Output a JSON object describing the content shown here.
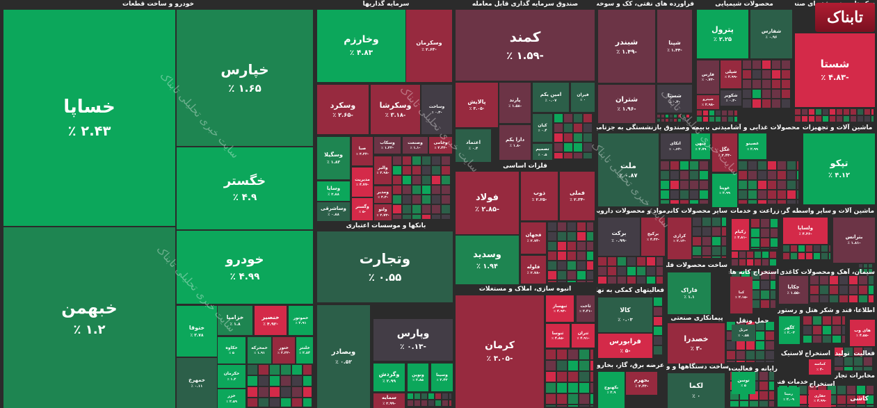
{
  "colors": {
    "bright_green": "#0ca75b",
    "green": "#1e8551",
    "dark_green": "#2c5f49",
    "gray": "#433d46",
    "maroon": "#6c3446",
    "red": "#972a3f",
    "bright_red": "#d42a49",
    "background": "#2b2b2b"
  },
  "logo": "تابناک",
  "watermark": "سایت خبری تحلیلی تابناک",
  "sectors": [
    "خودرو و ساخت قطعات",
    "سرمایه گذاریها",
    "صندوق سرمایه گذاری قابل معامله",
    "فراورده های نفتی، کک و سوخت هسته ای",
    "محصولات شیمیایی",
    "سکوهای چند رشته ای صنعتی",
    "بانکها و موسسات اعتباری",
    "فلزات اساسی",
    "انبوه سازی، املاک و مستغلات",
    "بیمه وصندوق بازنشستگی به جزتامین اجتماعی",
    "محصولات غذایی و آشامیدنی به جز قند",
    "ماشین آلات و تجهیزات",
    "مواد و محصولات دارویی",
    "سایر محصولات کانی",
    "زراعت و خدمات",
    "سایر واسطه گریهای",
    "ماشین آلات و",
    "ساخت محصولات فلزی",
    "استخراج کانه های",
    "محصولات کاغذی",
    "سیمان، آهک و گچ",
    "فعالیتهای کمکی به نهادهای",
    "پیمانکاری صنعتی",
    "حمل ونقل",
    "هتل و رستوران",
    "قند و شکر",
    "اطلاعات و",
    "لاستیک و",
    "استخراج",
    "تولید",
    "فعالیت",
    "عرضه برق، گاز، بخاروآب گرم",
    "ساخت دستگاهها و وسایل",
    "رایانه و فعالیت‌های",
    "خدمات فنی",
    "استخراج",
    "مخابرات تجارة منسوج",
    "کاشی"
  ],
  "tiles": [
    {
      "name": "خساپا",
      "pct": "۲.۴۳ ٪",
      "color": "bright_green"
    },
    {
      "name": "خبهمن",
      "pct": "۱.۲ ٪",
      "color": "green"
    },
    {
      "name": "خپارس",
      "pct": "۱.۶۵ ٪",
      "color": "green"
    },
    {
      "name": "خگستر",
      "pct": "۴.۹ ٪",
      "color": "bright_green"
    },
    {
      "name": "خودرو",
      "pct": "۴.۹۹ ٪",
      "color": "bright_green"
    },
    {
      "name": "خزامیا",
      "pct": "۱.۸ ٪",
      "color": "green"
    },
    {
      "name": "خنصیر",
      "pct": "-۴.۹۲ ٪",
      "color": "bright_red"
    },
    {
      "name": "خموتور",
      "pct": "۲.۹۱ ٪",
      "color": "bright_green"
    },
    {
      "name": "ختوقا",
      "pct": "۳.۷۸ ٪",
      "color": "bright_green"
    },
    {
      "name": "خمهرخ",
      "pct": "۰.۱۱ ٪",
      "color": "dark_green"
    },
    {
      "name": "خکاوه",
      "pct": "۵ ٪",
      "color": "bright_green"
    },
    {
      "name": "خمحرکه",
      "pct": "۱.۹۱ ٪",
      "color": "green"
    },
    {
      "name": "ختور",
      "pct": "-۲.۳۲ ٪",
      "color": "red"
    },
    {
      "name": "خلنتر",
      "pct": "۲.۸۴ ٪",
      "color": "bright_green"
    },
    {
      "name": "خکرمان",
      "pct": "۱.۲ ٪",
      "color": "bright_green"
    },
    {
      "name": "خزر",
      "pct": "۲.۵۹ ٪",
      "color": "bright_green"
    },
    {
      "name": "وخارزم",
      "pct": "۴.۸۳ ٪",
      "color": "bright_green"
    },
    {
      "name": "وسکرمان",
      "pct": "-۲.۶۳ ٪",
      "color": "red"
    },
    {
      "name": "وسکرد",
      "pct": "-۲.۶۵ ٪",
      "color": "red"
    },
    {
      "name": "وسکرشا",
      "pct": "-۳.۱۸ ٪",
      "color": "red"
    },
    {
      "name": "وساخت",
      "pct": "-۰.۳ ٪",
      "color": "gray"
    },
    {
      "name": "وسگیلا",
      "pct": "۱.۸۳ ٪",
      "color": "green"
    },
    {
      "name": "وساپا",
      "pct": "۲.۸۸ ٪",
      "color": "bright_green"
    },
    {
      "name": "وساشرقی",
      "pct": "۰.۸۸ ٪",
      "color": "dark_green"
    },
    {
      "name": "صبا",
      "pct": "-۳.۳۲ ٪",
      "color": "red"
    },
    {
      "name": "مدیریت",
      "pct": "-۴.۷۷ ٪",
      "color": "bright_red"
    },
    {
      "name": "وگستر",
      "pct": "-۵ ٪",
      "color": "bright_red"
    },
    {
      "name": "وسکاب",
      "pct": "-۱.۲۲ ٪",
      "color": "maroon"
    },
    {
      "name": "وصنعت",
      "pct": "-۱.۱ ٪",
      "color": "maroon"
    },
    {
      "name": "وجامی",
      "pct": "-۲.۴۲ ٪",
      "color": "red"
    },
    {
      "name": "والبر",
      "pct": "-۲.۹۸ ٪",
      "color": "red"
    },
    {
      "name": "ومدیر",
      "pct": "-۳.۳ ٪",
      "color": "red"
    },
    {
      "name": "ولتو",
      "pct": "-۲.۷۳ ٪",
      "color": "red"
    },
    {
      "name": "وتجارت",
      "pct": "۰.۵۵ ٪",
      "color": "dark_green"
    },
    {
      "name": "وبصادر",
      "pct": "۰.۵۲ ٪",
      "color": "dark_green"
    },
    {
      "name": "وپارس",
      "pct": "-۰.۱۳ ٪",
      "color": "gray"
    },
    {
      "name": "وگردش",
      "pct": "۲.۹۹ ٪",
      "color": "bright_green"
    },
    {
      "name": "ونوین",
      "pct": "۲.۸۵ ٪",
      "color": "bright_green"
    },
    {
      "name": "وسینا",
      "pct": "۲.۴۳ ٪",
      "color": "bright_green"
    },
    {
      "name": "سمایه",
      "pct": "-۲.۹۹ ٪",
      "color": "red"
    },
    {
      "name": "کمند",
      "pct": "-۱.۵۹ ٪",
      "color": "maroon"
    },
    {
      "name": "پالایش",
      "pct": "-۳.۰۵ ٪",
      "color": "red"
    },
    {
      "name": "پارند",
      "pct": "-۱.۵۸ ٪",
      "color": "maroon"
    },
    {
      "name": "امین یکم",
      "pct": "۰.۰۷ ٪",
      "color": "dark_green"
    },
    {
      "name": "فیران",
      "pct": "۰ ٪",
      "color": "dark_green"
    },
    {
      "name": "اعتماد",
      "pct": "۰.۴ ٪",
      "color": "dark_green"
    },
    {
      "name": "دارا یکم",
      "pct": "-۱.۸ ٪",
      "color": "maroon"
    },
    {
      "name": "کیان",
      "pct": "۰.۴ ٪",
      "color": "dark_green"
    },
    {
      "name": "تصمیم",
      "pct": "۰.۵ ٪",
      "color": "dark_green"
    },
    {
      "name": "فولاد",
      "pct": "-۲.۸۵ ٪",
      "color": "red"
    },
    {
      "name": "ذوب",
      "pct": "-۲.۲۵ ٪",
      "color": "red"
    },
    {
      "name": "فملی",
      "pct": "-۲.۳۴ ٪",
      "color": "red"
    },
    {
      "name": "وسدید",
      "pct": "۱.۹۴ ٪",
      "color": "green"
    },
    {
      "name": "فجهان",
      "pct": "-۲.۷۴ ٪",
      "color": "red"
    },
    {
      "name": "فلوله",
      "pct": "-۲.۷۸ ٪",
      "color": "red"
    },
    {
      "name": "کرمان",
      "pct": "-۳.۰۵ ٪",
      "color": "red"
    },
    {
      "name": "ثبهساز",
      "pct": "-۴.۹۳ ٪",
      "color": "bright_red"
    },
    {
      "name": "ثاخت",
      "pct": "-۲.۴۱ ٪",
      "color": "maroon"
    },
    {
      "name": "ثنوسا",
      "pct": "-۴.۸۵ ٪",
      "color": "bright_red"
    },
    {
      "name": "ثتران",
      "pct": "-۴.۹۱ ٪",
      "color": "bright_red"
    },
    {
      "name": "شبندر",
      "pct": "-۱.۴۹ ٪",
      "color": "maroon"
    },
    {
      "name": "شپنا",
      "pct": "-۱.۴۴ ٪",
      "color": "maroon"
    },
    {
      "name": "شتران",
      "pct": "-۱.۹۶ ٪",
      "color": "maroon"
    },
    {
      "name": "شسپا",
      "pct": "-۰.۳ ٪",
      "color": "gray"
    },
    {
      "name": "پترول",
      "pct": "۲.۲۵ ٪",
      "color": "bright_green"
    },
    {
      "name": "شفارس",
      "pct": "۰.۹۶ ٪",
      "color": "dark_green"
    },
    {
      "name": "شستا",
      "pct": "-۴.۸۳ ٪",
      "color": "bright_red"
    },
    {
      "name": "فارس",
      "pct": "-۰.۷۳ ٪",
      "color": "maroon"
    },
    {
      "name": "شپلی",
      "pct": "-۲.۹۹ ٪",
      "color": "red"
    },
    {
      "name": "شکویر",
      "pct": "-۰.۳ ٪",
      "color": "gray"
    },
    {
      "name": "شپترو",
      "pct": "-۲.۹۸ ٪",
      "color": "red"
    },
    {
      "name": "ملت",
      "pct": "۰.۸۷ ٪",
      "color": "dark_green"
    },
    {
      "name": "اتکای",
      "pct": "-۰.۶۲ ٪",
      "color": "gray"
    },
    {
      "name": "میهن",
      "pct": "۲.۷۹ ٪",
      "color": "bright_green"
    },
    {
      "name": "غگل",
      "pct": "-۲.۴۳ ٪",
      "color": "red"
    },
    {
      "name": "غویتا",
      "pct": "۲.۹۹ ٪",
      "color": "bright_green"
    },
    {
      "name": "غصینو",
      "pct": "۲.۹۹ ٪",
      "color": "bright_green"
    },
    {
      "name": "تپکو",
      "pct": "۴.۱۲ ٪",
      "color": "bright_green"
    },
    {
      "name": "برکت",
      "pct": "-۰.۹۹ ٪",
      "color": "gray"
    },
    {
      "name": "برکیح",
      "pct": "-۴.۴۳ ٪",
      "color": "red"
    },
    {
      "name": "کرازی",
      "pct": "-۲.۱۳ ٪",
      "color": "red"
    },
    {
      "name": "زکیام",
      "pct": "-۲.۸۱ ٪",
      "color": "bright_red"
    },
    {
      "name": "ولساپا",
      "pct": "-۴.۳۶ ٪",
      "color": "bright_red"
    },
    {
      "name": "بترانس",
      "pct": "-۱.۸۱ ٪",
      "color": "maroon"
    },
    {
      "name": "فاراک",
      "pct": "۱.۱ ٪",
      "color": "green"
    },
    {
      "name": "کالا",
      "pct": "۰.۰۳ ٪",
      "color": "dark_green"
    },
    {
      "name": "فرابورس",
      "pct": "-۵ ٪",
      "color": "bright_red"
    },
    {
      "name": "خصدرا",
      "pct": "-۳ ٪",
      "color": "red"
    },
    {
      "name": "لکما",
      "pct": "۰ ٪",
      "color": "dark_green"
    },
    {
      "name": "بکهنوج",
      "pct": "۲.۹ ٪",
      "color": "bright_green"
    },
    {
      "name": "بجهرم",
      "pct": "-۲.۴۳ ٪",
      "color": "red"
    },
    {
      "name": "چکاپا",
      "pct": "-۱.۵۵ ٪",
      "color": "maroon"
    },
    {
      "name": "های وب",
      "pct": "-۴.۵۵ ٪",
      "color": "bright_red"
    },
    {
      "name": "کگهر",
      "pct": "۲.۰۳ ٪",
      "color": "bright_green"
    },
    {
      "name": "کما",
      "pct": "-۲.۱۵ ٪",
      "color": "red"
    },
    {
      "name": "حریل",
      "pct": "۰.۵۸ ٪",
      "color": "dark_green"
    },
    {
      "name": "توسن",
      "pct": "۵ ٪",
      "color": "bright_green"
    },
    {
      "name": "کماسه",
      "pct": "-۴ ٪",
      "color": "bright_red"
    },
    {
      "name": "رمپنا",
      "pct": "۲.۰۹ ٪",
      "color": "bright_green"
    },
    {
      "name": "حفاری",
      "pct": "-۴.۹۹ ٪",
      "color": "bright_red"
    }
  ]
}
